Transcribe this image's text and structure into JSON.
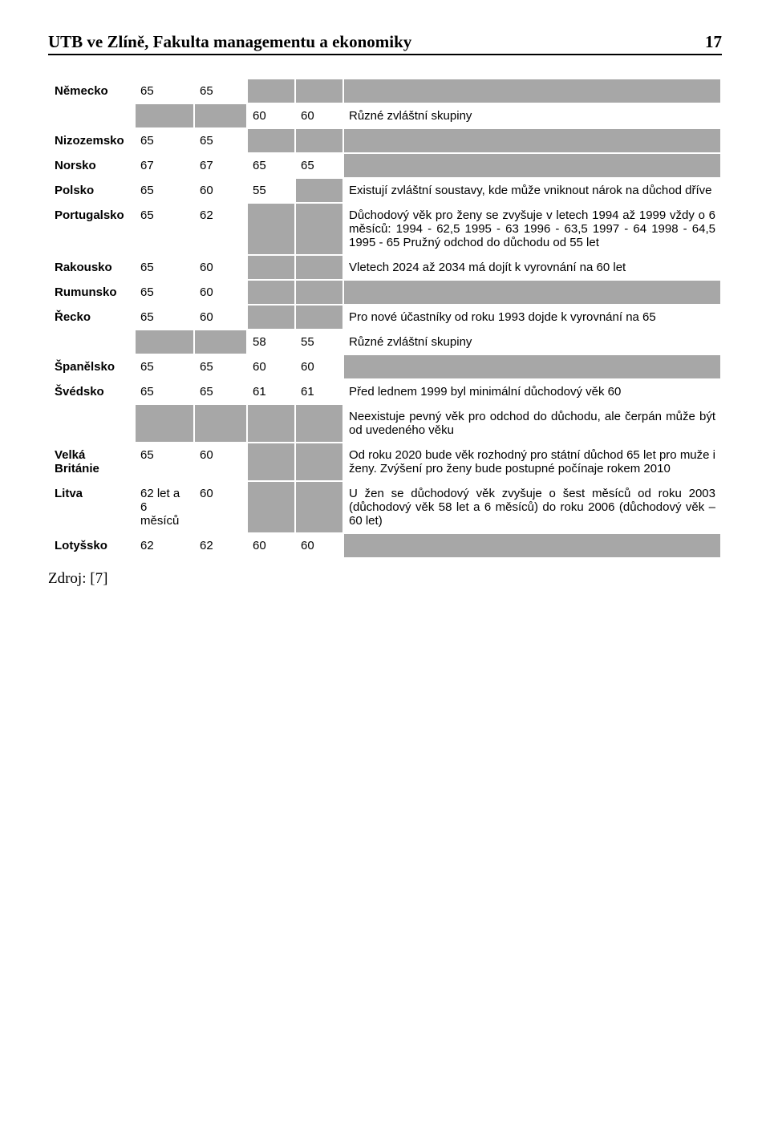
{
  "header": {
    "title": "UTB ve Zlíně, Fakulta managementu a ekonomiky",
    "page_number": "17"
  },
  "colors": {
    "gray": "#a7a7a7",
    "white": "#ffffff",
    "border": "#000000"
  },
  "rows": {
    "nemecko": {
      "country": "Německo",
      "v1": "65",
      "v2": "65",
      "desc": ""
    },
    "nemecko2": {
      "v3": "60",
      "v4": "60",
      "desc": "Různé zvláštní skupiny"
    },
    "nizozemsko": {
      "country": "Nizozemsko",
      "v1": "65",
      "v2": "65",
      "desc": ""
    },
    "norsko": {
      "country": "Norsko",
      "v1": "67",
      "v2": "67",
      "v3": "65",
      "v4": "65",
      "desc": ""
    },
    "polsko": {
      "country": "Polsko",
      "v1": "65",
      "v2": "60",
      "v3": "55",
      "desc": "Existují zvláštní soustavy, kde může vniknout nárok na důchod dříve"
    },
    "portugalsko": {
      "country": "Portugalsko",
      "v1": "65",
      "v2": "62",
      "desc": "Důchodový věk pro ženy se zvyšuje v letech 1994 až 1999 vždy o 6 měsíců: 1994 - 62,5 1995 - 63 1996 - 63,5 1997 - 64 1998 - 64,5 1995 - 65 Pružný odchod do důchodu od 55 let"
    },
    "rakousko": {
      "country": "Rakousko",
      "v1": "65",
      "v2": "60",
      "desc": "Vletech 2024 až 2034 má dojít k vyrovnání na 60 let"
    },
    "rumunsko": {
      "country": "Rumunsko",
      "v1": "65",
      "v2": "60",
      "desc": ""
    },
    "recko": {
      "country": "Řecko",
      "v1": "65",
      "v2": "60",
      "desc": "Pro nové účastníky od roku 1993 dojde k vyrovnání na 65"
    },
    "recko2": {
      "v3": "58",
      "v4": "55",
      "desc": "Různé zvláštní skupiny"
    },
    "spanelsko": {
      "country": "Španělsko",
      "v1": "65",
      "v2": "65",
      "v3": "60",
      "v4": "60",
      "desc": ""
    },
    "svedsko": {
      "country": "Švédsko",
      "v1": "65",
      "v2": "65",
      "v3": "61",
      "v4": "61",
      "desc": "Před lednem 1999 byl minimální důchodový věk 60"
    },
    "svedsko2": {
      "desc": "Neexistuje pevný věk pro odchod do důchodu, ale čerpán může být od uvedeného věku"
    },
    "uk": {
      "country": "Velká Británie",
      "v1": "65",
      "v2": "60",
      "desc": "Od roku 2020 bude věk rozhodný pro státní důchod 65 let pro muže i ženy. Zvýšení pro ženy bude postupné počínaje rokem 2010"
    },
    "litva": {
      "country": "Litva",
      "v1": "62 let a 6 měsíců",
      "v2": "60",
      "desc": "U žen se důchodový věk zvyšuje o šest měsíců od roku 2003 (důchodový věk 58 let a 6 měsíců) do roku 2006 (důchodový věk – 60 let)"
    },
    "lotyssko": {
      "country": "Lotyšsko",
      "v1": "62",
      "v2": "62",
      "v3": "60",
      "v4": "60",
      "desc": ""
    }
  },
  "source": "Zdroj: [7]"
}
